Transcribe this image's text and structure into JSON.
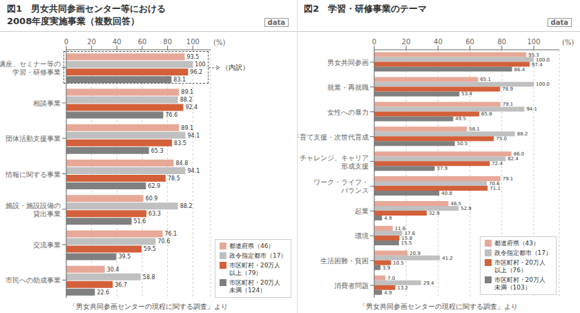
{
  "chart_data": [
    {
      "type": "bar",
      "orientation": "horizontal",
      "title": "図1　男女共同参画センター等における",
      "subtitle": "2008年度実施事業（複数回答）",
      "xlabel": "(%)",
      "annotations": [
        "data",
        "（内訳）"
      ],
      "footnote": "「男女共同参画センターの現程に関する調査」より",
      "grid": true,
      "legend": "right",
      "data_labels": true,
      "xlim": [
        0,
        114
      ],
      "xticks": [
        0,
        20,
        40,
        60,
        80,
        100
      ],
      "categories": [
        "講座、セミナー等の\n学習・研修事業",
        "相談事業",
        "団体活動支援事業",
        "情報に関する事業",
        "施設・施設設備の\n貸出事業",
        "交流事業",
        "市民への助成事業"
      ],
      "series": [
        {
          "name": "都道府県（46）",
          "color": "#e8a898",
          "values": [
            93.5,
            89.1,
            89.1,
            84.8,
            60.9,
            76.1,
            30.4
          ],
          "value_labels": [
            "93.5",
            "89.1",
            "89.1",
            "84.8",
            "60.9",
            "76.1",
            "30.4"
          ]
        },
        {
          "name": "政令指定都市（17）",
          "color": "#c0c0c0",
          "values": [
            100.0,
            88.2,
            94.1,
            94.1,
            88.2,
            70.6,
            58.8
          ],
          "value_labels": [
            "100",
            "88.2",
            "94.1",
            "94.1",
            "88.2",
            "70.6",
            "58.8"
          ]
        },
        {
          "name": "市区町村・20万人\n以上（79）",
          "color": "#d4603a",
          "values": [
            96.2,
            92.4,
            83.5,
            78.5,
            63.3,
            59.5,
            36.7
          ],
          "value_labels": [
            "96.2",
            "92.4",
            "83.5",
            "78.5",
            "63.3",
            "59.5",
            "36.7"
          ]
        },
        {
          "name": "市区町村・20万人\n未満（124）",
          "color": "#808080",
          "values": [
            83.1,
            76.6,
            65.3,
            62.9,
            51.6,
            39.5,
            22.6
          ],
          "value_labels": [
            "83.1",
            "76.6",
            "65.3",
            "62.9",
            "51.6",
            "39.5",
            "22.6"
          ]
        }
      ]
    },
    {
      "type": "bar",
      "orientation": "horizontal",
      "title": "図2　学習・研修事業のテーマ",
      "xlabel": "(%)",
      "annotations": [
        "data"
      ],
      "footnote": "「男女共同参画センターの現程に関する調査」より",
      "grid": true,
      "legend": "lower right",
      "data_labels": true,
      "xlim": [
        0,
        116
      ],
      "xticks": [
        0,
        20,
        40,
        60,
        80,
        100
      ],
      "categories": [
        "男女共同参画",
        "就業・再就職",
        "女性への暴力",
        "子育て支援・次世代育成",
        "チャレンジ、キャリア\n形成支援",
        "ワーク・ライフ・\nバランス",
        "起業",
        "環境",
        "生活困難・貧困",
        "消費者問題"
      ],
      "series": [
        {
          "name": "都道府県（43）",
          "color": "#e8a898",
          "values": [
            95.3,
            65.1,
            79.1,
            58.1,
            86.0,
            79.1,
            46.5,
            11.6,
            20.9,
            7.0
          ],
          "value_labels": [
            "95.3",
            "65.1",
            "79.1",
            "58.1",
            "86.0",
            "79.1",
            "46.5",
            "11.6",
            "20.9",
            "7.0"
          ]
        },
        {
          "name": "政令指定都市（17）",
          "color": "#c0c0c0",
          "values": [
            100.0,
            100.0,
            94.1,
            88.2,
            82.4,
            70.6,
            52.9,
            17.6,
            41.2,
            29.4
          ],
          "value_labels": [
            "100.0",
            "100.0",
            "94.1",
            "88.2",
            "82.4",
            "70.6",
            "52.9",
            "17.6",
            "41.2",
            "29.4"
          ]
        },
        {
          "name": "市区町村・20万人\n以上（76）",
          "color": "#d4603a",
          "values": [
            97.4,
            78.9,
            65.8,
            75.0,
            72.4,
            71.1,
            32.9,
            15.8,
            10.5,
            13.2
          ],
          "value_labels": [
            "97.4",
            "78.9",
            "65.8",
            "75.0",
            "72.4",
            "71.1",
            "32.9",
            "15.8",
            "10.5",
            "13.2"
          ]
        },
        {
          "name": "市区町村・20万人\n未満（103）",
          "color": "#808080",
          "values": [
            86.4,
            53.4,
            49.5,
            50.5,
            37.9,
            40.8,
            4.9,
            15.5,
            3.9,
            4.9
          ],
          "value_labels": [
            "86.4",
            "53.4",
            "49.5",
            "50.5",
            "37.9",
            "40.8",
            "4.9",
            "15.5",
            "3.9",
            "4.9"
          ]
        }
      ]
    }
  ]
}
